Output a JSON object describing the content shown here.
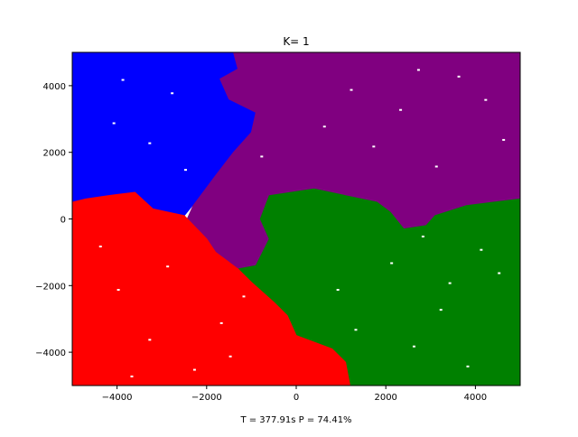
{
  "chart_data": {
    "type": "heatmap",
    "title": "K= 1",
    "xlabel": "T = 377.91s P = 74.41%",
    "ylabel": "",
    "xlim": [
      -5000,
      5000
    ],
    "ylim": [
      -5000,
      5000
    ],
    "xticks": [
      -4000,
      -2000,
      0,
      2000,
      4000
    ],
    "yticks": [
      -4000,
      -2000,
      0,
      2000,
      4000
    ],
    "xtick_labels": [
      "−4000",
      "−2000",
      "0",
      "2000",
      "4000"
    ],
    "ytick_labels": [
      "−4000",
      "−2000",
      "0",
      "2000",
      "4000"
    ],
    "grid": false,
    "legend": "none",
    "regions": [
      {
        "color": "#0000ff",
        "polygon": [
          [
            -5000,
            5000
          ],
          [
            -1400,
            5000
          ],
          [
            -1300,
            4500
          ],
          [
            -1700,
            4200
          ],
          [
            -1500,
            3600
          ],
          [
            -900,
            3200
          ],
          [
            -1000,
            2600
          ],
          [
            -1400,
            2000
          ],
          [
            -1800,
            1300
          ],
          [
            -2200,
            600
          ],
          [
            -2500,
            100
          ],
          [
            -3200,
            300
          ],
          [
            -3600,
            800
          ],
          [
            -4200,
            700
          ],
          [
            -4700,
            600
          ],
          [
            -5000,
            500
          ]
        ]
      },
      {
        "color": "#800080",
        "polygon": [
          [
            -1400,
            5000
          ],
          [
            5000,
            5000
          ],
          [
            5000,
            600
          ],
          [
            4400,
            500
          ],
          [
            3800,
            400
          ],
          [
            3100,
            100
          ],
          [
            2900,
            -200
          ],
          [
            2400,
            -300
          ],
          [
            2100,
            200
          ],
          [
            1800,
            500
          ],
          [
            1100,
            700
          ],
          [
            400,
            900
          ],
          [
            -600,
            700
          ],
          [
            -800,
            0
          ],
          [
            -600,
            -600
          ],
          [
            -900,
            -1400
          ],
          [
            -1300,
            -1500
          ],
          [
            -1800,
            -1000
          ],
          [
            -2000,
            -600
          ],
          [
            -2500,
            -200
          ],
          [
            -2300,
            400
          ],
          [
            -1800,
            1300
          ],
          [
            -1400,
            2000
          ],
          [
            -1000,
            2600
          ],
          [
            -900,
            3200
          ],
          [
            -1500,
            3600
          ],
          [
            -1700,
            4200
          ],
          [
            -1300,
            4500
          ]
        ]
      },
      {
        "color": "#008000",
        "polygon": [
          [
            5000,
            600
          ],
          [
            5000,
            -5000
          ],
          [
            1200,
            -5000
          ],
          [
            1100,
            -4300
          ],
          [
            800,
            -3900
          ],
          [
            0,
            -3500
          ],
          [
            -200,
            -2900
          ],
          [
            -500,
            -2500
          ],
          [
            -1000,
            -1900
          ],
          [
            -1300,
            -1500
          ],
          [
            -900,
            -1400
          ],
          [
            -600,
            -600
          ],
          [
            -800,
            0
          ],
          [
            -600,
            700
          ],
          [
            400,
            900
          ],
          [
            1100,
            700
          ],
          [
            1800,
            500
          ],
          [
            2100,
            200
          ],
          [
            2400,
            -300
          ],
          [
            2900,
            -200
          ],
          [
            3100,
            100
          ],
          [
            3800,
            400
          ],
          [
            4400,
            500
          ]
        ]
      },
      {
        "color": "#ff0000",
        "polygon": [
          [
            -5000,
            500
          ],
          [
            -4700,
            600
          ],
          [
            -4200,
            700
          ],
          [
            -3600,
            800
          ],
          [
            -3200,
            300
          ],
          [
            -2500,
            100
          ],
          [
            -2000,
            -600
          ],
          [
            -1800,
            -1000
          ],
          [
            -1300,
            -1500
          ],
          [
            -1000,
            -1900
          ],
          [
            -500,
            -2500
          ],
          [
            -200,
            -2900
          ],
          [
            0,
            -3500
          ],
          [
            800,
            -3900
          ],
          [
            1100,
            -4300
          ],
          [
            1200,
            -5000
          ],
          [
            -5000,
            -5000
          ]
        ]
      }
    ],
    "voids": [
      [
        -3900,
        4200
      ],
      [
        -2800,
        3800
      ],
      [
        -3300,
        2300
      ],
      [
        -4100,
        2900
      ],
      [
        -2500,
        1500
      ],
      [
        3600,
        4300
      ],
      [
        1700,
        2200
      ],
      [
        4200,
        3600
      ],
      [
        2700,
        4500
      ],
      [
        600,
        2800
      ],
      [
        3100,
        1600
      ],
      [
        4600,
        2400
      ],
      [
        1200,
        3900
      ],
      [
        -800,
        1900
      ],
      [
        2300,
        3300
      ],
      [
        -4000,
        -2100
      ],
      [
        -2900,
        -1400
      ],
      [
        -3300,
        -3600
      ],
      [
        -1700,
        -3100
      ],
      [
        -4400,
        -800
      ],
      [
        -2300,
        -4500
      ],
      [
        -1200,
        -2300
      ],
      [
        2100,
        -1300
      ],
      [
        3200,
        -2700
      ],
      [
        4500,
        -1600
      ],
      [
        1300,
        -3300
      ],
      [
        3800,
        -4400
      ],
      [
        900,
        -2100
      ],
      [
        4100,
        -900
      ],
      [
        2600,
        -3800
      ],
      [
        -1500,
        -4100
      ],
      [
        2800,
        -500
      ],
      [
        -3700,
        -4700
      ],
      [
        3400,
        -1900
      ]
    ]
  }
}
